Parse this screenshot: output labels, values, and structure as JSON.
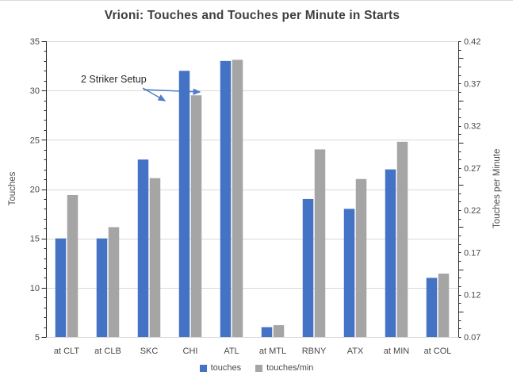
{
  "chart_data": {
    "type": "bar",
    "title": "Vrioni: Touches and Touches per Minute in Starts",
    "categories": [
      "at CLT",
      "at CLB",
      "SKC",
      "CHI",
      "ATL",
      "at MTL",
      "RBNY",
      "ATX",
      "at MIN",
      "at COL"
    ],
    "series": [
      {
        "name": "touches",
        "axis": "left",
        "color": "#4472C4",
        "values": [
          15,
          15,
          23,
          32,
          33,
          6,
          19,
          18,
          22,
          11
        ]
      },
      {
        "name": "touches/min",
        "axis": "right",
        "color": "#A5A5A5",
        "values": [
          0.238,
          0.2,
          0.258,
          0.356,
          0.398,
          0.084,
          0.292,
          0.257,
          0.301,
          0.145
        ]
      }
    ],
    "left_axis": {
      "label": "Touches",
      "min": 5,
      "max": 35,
      "tick_step": 5,
      "minor_step": 1,
      "ticks": [
        "5",
        "10",
        "15",
        "20",
        "25",
        "30",
        "35"
      ]
    },
    "right_axis": {
      "label": "Touches per Minute",
      "min": 0.07,
      "max": 0.42,
      "tick_step": 0.05,
      "minor_step": 0.01,
      "ticks": [
        "0.07",
        "0.12",
        "0.17",
        "0.22",
        "0.27",
        "0.32",
        "0.37",
        "0.42"
      ]
    },
    "legend": {
      "position": "bottom",
      "items": [
        "touches",
        "touches/min"
      ]
    },
    "grid": true,
    "gridline_color": "#d9d9d9",
    "axis_line_color": "#262626",
    "annotation": {
      "text": "2 Striker Setup",
      "arrow_color": "#4472C4"
    }
  }
}
